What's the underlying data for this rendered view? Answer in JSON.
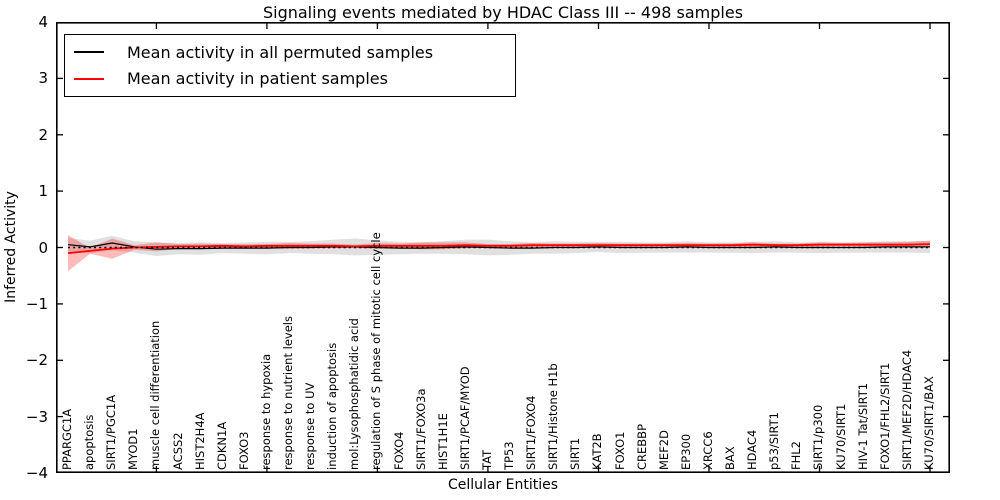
{
  "title": "Signaling events mediated by HDAC Class III -- 498 samples",
  "axes": {
    "xlabel": "Cellular Entities",
    "ylabel": "Inferred Activity",
    "ytick_labels": [
      "4",
      "3",
      "2",
      "1",
      "0",
      "−1",
      "−2",
      "−3",
      "−4"
    ]
  },
  "legend": {
    "items": [
      {
        "label": "Mean activity in all permuted samples",
        "color": "#000000"
      },
      {
        "label": "Mean activity in patient samples",
        "color": "#ff0000"
      }
    ]
  },
  "chart_data": {
    "type": "line",
    "title": "Signaling events mediated by HDAC Class III -- 498 samples",
    "xlabel": "Cellular Entities",
    "ylabel": "Inferred Activity",
    "ylim": [
      -4,
      4
    ],
    "yticks": [
      4,
      3,
      2,
      1,
      0,
      -1,
      -2,
      -3,
      -4
    ],
    "grid": false,
    "legend_position": "upper left",
    "zero_line": {
      "style": "dotted",
      "color": "#000000",
      "y": 0
    },
    "categories": [
      "PPARGC1A",
      "apoptosis",
      "SIRT1/PGC1A",
      "MYOD1",
      "muscle cell differentiation",
      "ACSS2",
      "HIST2H4A",
      "CDKN1A",
      "FOXO3",
      "response to hypoxia",
      "response to nutrient levels",
      "response to UV",
      "induction of apoptosis",
      "mol:Lysophosphatidic acid",
      "regulation of S phase of mitotic cell cycle",
      "FOXO4",
      "SIRT1/FOXO3a",
      "HIST1H1E",
      "SIRT1/PCAF/MYOD",
      "TAT",
      "TP53",
      "SIRT1/FOXO4",
      "SIRT1/Histone H1b",
      "SIRT1",
      "KAT2B",
      "FOXO1",
      "CREBBP",
      "MEF2D",
      "EP300",
      "XRCC6",
      "BAX",
      "HDAC4",
      "p53/SIRT1",
      "FHL2",
      "SIRT1/p300",
      "KU70/SIRT1",
      "HIV-1 Tat/SIRT1",
      "FOXO1/FHL2/SIRT1",
      "SIRT1/MEF2D/HDAC4",
      "KU70/SIRT1/BAX"
    ],
    "series": [
      {
        "name": "Mean activity in all permuted samples",
        "color": "#000000",
        "line_width": 1.2,
        "band_color": "#a0a0a0",
        "band_opacity": 0.32,
        "values": [
          0.05,
          0.01,
          0.08,
          0.01,
          -0.03,
          -0.02,
          -0.02,
          -0.01,
          -0.01,
          -0.01,
          0.0,
          0.0,
          0.01,
          0.01,
          0.0,
          -0.01,
          -0.01,
          0.0,
          0.01,
          0.0,
          -0.01,
          -0.01,
          0.0,
          0.0,
          0.01,
          0.0,
          0.0,
          0.0,
          0.01,
          0.0,
          0.0,
          0.0,
          0.01,
          0.0,
          0.0,
          0.0,
          0.0,
          0.01,
          0.01,
          0.01
        ],
        "band_halfwidth": [
          0.12,
          0.11,
          0.13,
          0.1,
          0.12,
          0.1,
          0.11,
          0.09,
          0.1,
          0.11,
          0.1,
          0.11,
          0.13,
          0.15,
          0.13,
          0.11,
          0.1,
          0.11,
          0.13,
          0.14,
          0.12,
          0.1,
          0.11,
          0.1,
          0.09,
          0.1,
          0.09,
          0.09,
          0.1,
          0.09,
          0.09,
          0.1,
          0.1,
          0.09,
          0.1,
          0.09,
          0.09,
          0.1,
          0.1,
          0.11
        ]
      },
      {
        "name": "Mean activity in patient samples",
        "color": "#ff0000",
        "line_width": 1.8,
        "band_color": "#ff0000",
        "band_opacity": 0.27,
        "values": [
          -0.1,
          -0.06,
          -0.02,
          0.0,
          0.01,
          0.02,
          0.02,
          0.03,
          0.02,
          0.03,
          0.03,
          0.03,
          0.03,
          0.02,
          0.03,
          0.03,
          0.03,
          0.03,
          0.04,
          0.03,
          0.03,
          0.04,
          0.04,
          0.04,
          0.04,
          0.04,
          0.04,
          0.04,
          0.04,
          0.04,
          0.04,
          0.05,
          0.04,
          0.04,
          0.05,
          0.05,
          0.05,
          0.05,
          0.05,
          0.06
        ],
        "band_halfwidth": [
          0.32,
          0.05,
          0.18,
          0.04,
          0.08,
          0.04,
          0.05,
          0.03,
          0.04,
          0.03,
          0.05,
          0.04,
          0.04,
          0.03,
          0.05,
          0.04,
          0.06,
          0.06,
          0.05,
          0.03,
          0.03,
          0.04,
          0.03,
          0.03,
          0.04,
          0.03,
          0.03,
          0.03,
          0.04,
          0.03,
          0.03,
          0.04,
          0.03,
          0.03,
          0.04,
          0.03,
          0.04,
          0.04,
          0.05,
          0.06
        ]
      }
    ]
  }
}
